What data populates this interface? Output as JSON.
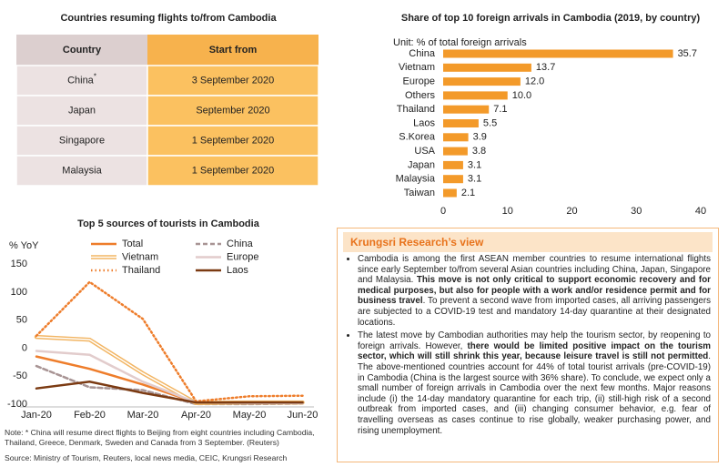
{
  "table": {
    "title": "Countries resuming flights to/from Cambodia",
    "header": [
      "Country",
      "Start from"
    ],
    "rows": [
      {
        "country": "China",
        "mark": "*",
        "start": "3 September 2020"
      },
      {
        "country": "Japan",
        "start": "September 2020"
      },
      {
        "country": "Singapore",
        "start": "1 September 2020"
      },
      {
        "country": "Malaysia",
        "start": "1 September 2020"
      }
    ]
  },
  "chart_data": [
    {
      "type": "hbar",
      "title": "Share of top 10 foreign arrivals in Cambodia (2019, by country)",
      "unit": "Unit: % of total foreign arrivals",
      "categories": [
        "China",
        "Vietnam",
        "Europe",
        "Others",
        "Thailand",
        "Laos",
        "S.Korea",
        "USA",
        "Japan",
        "Malaysia",
        "Taiwan"
      ],
      "values": [
        35.7,
        13.7,
        12.0,
        10.0,
        7.1,
        5.5,
        3.9,
        3.8,
        3.1,
        3.1,
        2.1
      ],
      "value_labels": [
        "35.7",
        "13.7",
        "12.0",
        "10.0",
        "7.1",
        "5.5",
        "3.9",
        "3.8",
        "3.1",
        "3.1",
        "2.1"
      ],
      "color": "#f39a2a",
      "xlim": [
        0,
        40
      ],
      "xticks": [
        0,
        10,
        20,
        30,
        40
      ],
      "grid": false
    },
    {
      "type": "line",
      "title": "Top 5 sources of tourists in Cambodia",
      "ylabel": "% YoY",
      "categories": [
        "Jan-20",
        "Feb-20",
        "Mar-20",
        "Apr-20",
        "May-20",
        "Jun-20"
      ],
      "ylim": [
        -105,
        155
      ],
      "yticks": [
        -100,
        -50,
        0,
        50,
        100,
        150
      ],
      "grid": false,
      "series": [
        {
          "name": "Total",
          "color": "#ee7d2b",
          "style": "solid",
          "values": [
            -15,
            -37,
            -65,
            -97,
            -97,
            -96
          ]
        },
        {
          "name": "China",
          "color": "#a89494",
          "style": "dashed",
          "values": [
            -32,
            -70,
            -75,
            -100,
            -100,
            -99
          ]
        },
        {
          "name": "Vietnam",
          "color": "#f2b563",
          "style": "double",
          "values": [
            20,
            15,
            -45,
            -98,
            -97,
            -97
          ]
        },
        {
          "name": "Europe",
          "color": "#e2cccc",
          "style": "solid",
          "values": [
            -5,
            -12,
            -60,
            -97,
            -98,
            -98
          ]
        },
        {
          "name": "Thailand",
          "color": "#ee7d2b",
          "style": "dotted",
          "values": [
            22,
            118,
            52,
            -95,
            -86,
            -85
          ]
        },
        {
          "name": "Laos",
          "color": "#7b3a12",
          "style": "solid",
          "values": [
            -72,
            -60,
            -80,
            -97,
            -97,
            -97
          ]
        }
      ]
    }
  ],
  "view": {
    "title": "Krungsri Research’s view",
    "paragraphs": [
      [
        {
          "text": "Cambodia is among the first ASEAN member countries to resume international flights since early September to/from several Asian countries including China, Japan, Singapore and Malaysia. ",
          "bold": false
        },
        {
          "text": "This move is not only critical to support economic recovery and for medical purposes, but also for people with a work and/or residence permit and for business travel",
          "bold": true
        },
        {
          "text": ". To prevent a second wave from imported cases, all arriving passengers are subjected to a COVID-19 test and mandatory 14-day quarantine at their designated locations.",
          "bold": false
        }
      ],
      [
        {
          "text": "The latest move by Cambodian authorities may help the tourism sector, by reopening to foreign arrivals. However, ",
          "bold": false
        },
        {
          "text": "there would be limited positive impact on the tourism sector, which will still shrink this year, because leisure travel is still not permitted",
          "bold": true
        },
        {
          "text": ". The above-mentioned countries account for 44% of total tourist arrivals (pre-COVID-19) in Cambodia (China is the largest source with 36% share). To conclude, we expect only a small number of foreign arrivals in Cambodia over the next few months. Major reasons include (i) the 14-day mandatory quarantine for each trip, (ii) still-high risk of a second outbreak from imported cases, and (iii) changing consumer behavior, e.g. fear of travelling overseas as cases continue to rise globally, weaker purchasing power, and rising unemployment.",
          "bold": false
        }
      ]
    ]
  },
  "note": "Note: * China will resume direct flights to Beijing from eight countries including Cambodia, Thailand, Greece, Denmark, Sweden and Canada from 3 September. (Reuters)",
  "source": "Source: Ministry of Tourism, Reuters, local news media, CEIC, Krungsri Research"
}
